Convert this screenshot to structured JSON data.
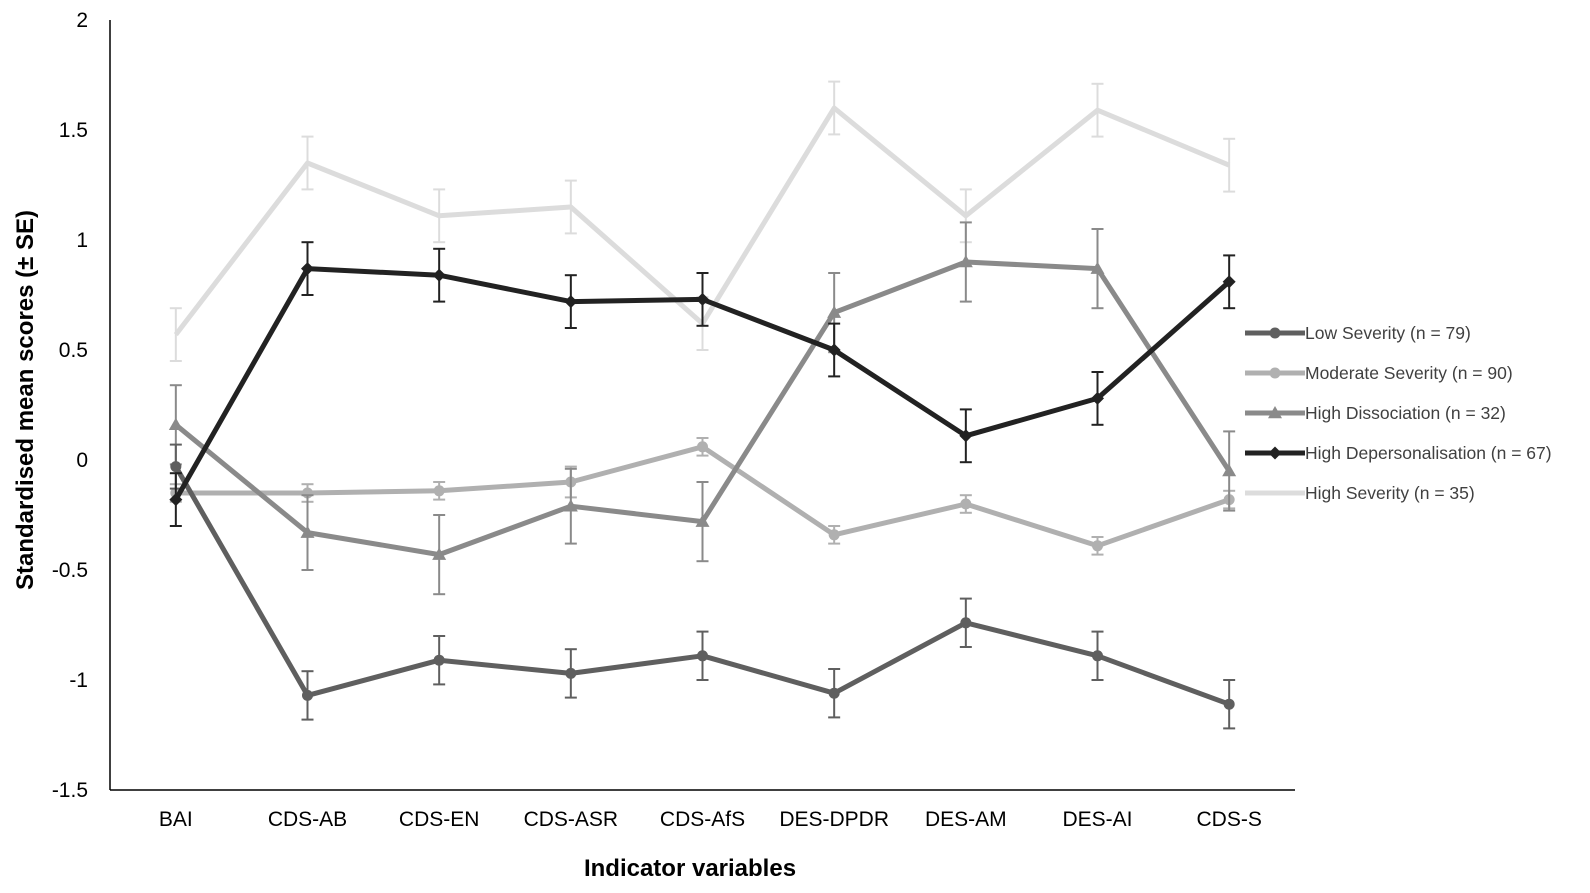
{
  "chart_data": {
    "type": "line",
    "xlabel": "Indicator variables",
    "ylabel": "Standardised mean scores (± SE)",
    "ylim": [
      -1.5,
      2
    ],
    "yticks": [
      -1.5,
      -1,
      -0.5,
      0,
      0.5,
      1,
      1.5,
      2
    ],
    "ytick_labels": [
      "-1.5",
      "-1",
      "-0.5",
      "0",
      "0.5",
      "1",
      "1.5",
      "2"
    ],
    "categories": [
      "BAI",
      "CDS-AB",
      "CDS-EN",
      "CDS-ASR",
      "CDS-AfS",
      "DES-DPDR",
      "DES-AM",
      "DES-AI",
      "CDS-S"
    ],
    "grid": false,
    "legend_position": "right",
    "series": [
      {
        "name": "Low Severity (n = 79)",
        "color": "#5f5f5f",
        "marker": "circle",
        "values": [
          -0.03,
          -1.07,
          -0.91,
          -0.97,
          -0.89,
          -1.06,
          -0.74,
          -0.89,
          -1.11
        ],
        "se": [
          0.1,
          0.11,
          0.11,
          0.11,
          0.11,
          0.11,
          0.11,
          0.11,
          0.11
        ]
      },
      {
        "name": "Moderate Severity (n = 90)",
        "color": "#b0b0b0",
        "marker": "circle",
        "values": [
          -0.15,
          -0.15,
          -0.14,
          -0.1,
          0.06,
          -0.34,
          -0.2,
          -0.39,
          -0.18
        ],
        "se": [
          0.04,
          0.04,
          0.04,
          0.07,
          0.04,
          0.04,
          0.04,
          0.04,
          0.04
        ]
      },
      {
        "name": "High Dissociation (n = 32)",
        "color": "#8a8a8a",
        "marker": "triangle",
        "values": [
          0.16,
          -0.33,
          -0.43,
          -0.21,
          -0.28,
          0.67,
          0.9,
          0.87,
          -0.05
        ],
        "se": [
          0.18,
          0.17,
          0.18,
          0.17,
          0.18,
          0.18,
          0.18,
          0.18,
          0.18
        ]
      },
      {
        "name": "High Depersonalisation (n = 67)",
        "color": "#222222",
        "marker": "diamond",
        "values": [
          -0.18,
          0.87,
          0.84,
          0.72,
          0.73,
          0.5,
          0.11,
          0.28,
          0.81
        ],
        "se": [
          0.12,
          0.12,
          0.12,
          0.12,
          0.12,
          0.12,
          0.12,
          0.12,
          0.12
        ]
      },
      {
        "name": "High Severity (n = 35)",
        "color": "#dcdcdc",
        "marker": "none",
        "values": [
          0.57,
          1.35,
          1.11,
          1.15,
          0.62,
          1.6,
          1.11,
          1.59,
          1.34
        ],
        "se": [
          0.12,
          0.12,
          0.12,
          0.12,
          0.12,
          0.12,
          0.12,
          0.12,
          0.12
        ]
      }
    ]
  }
}
